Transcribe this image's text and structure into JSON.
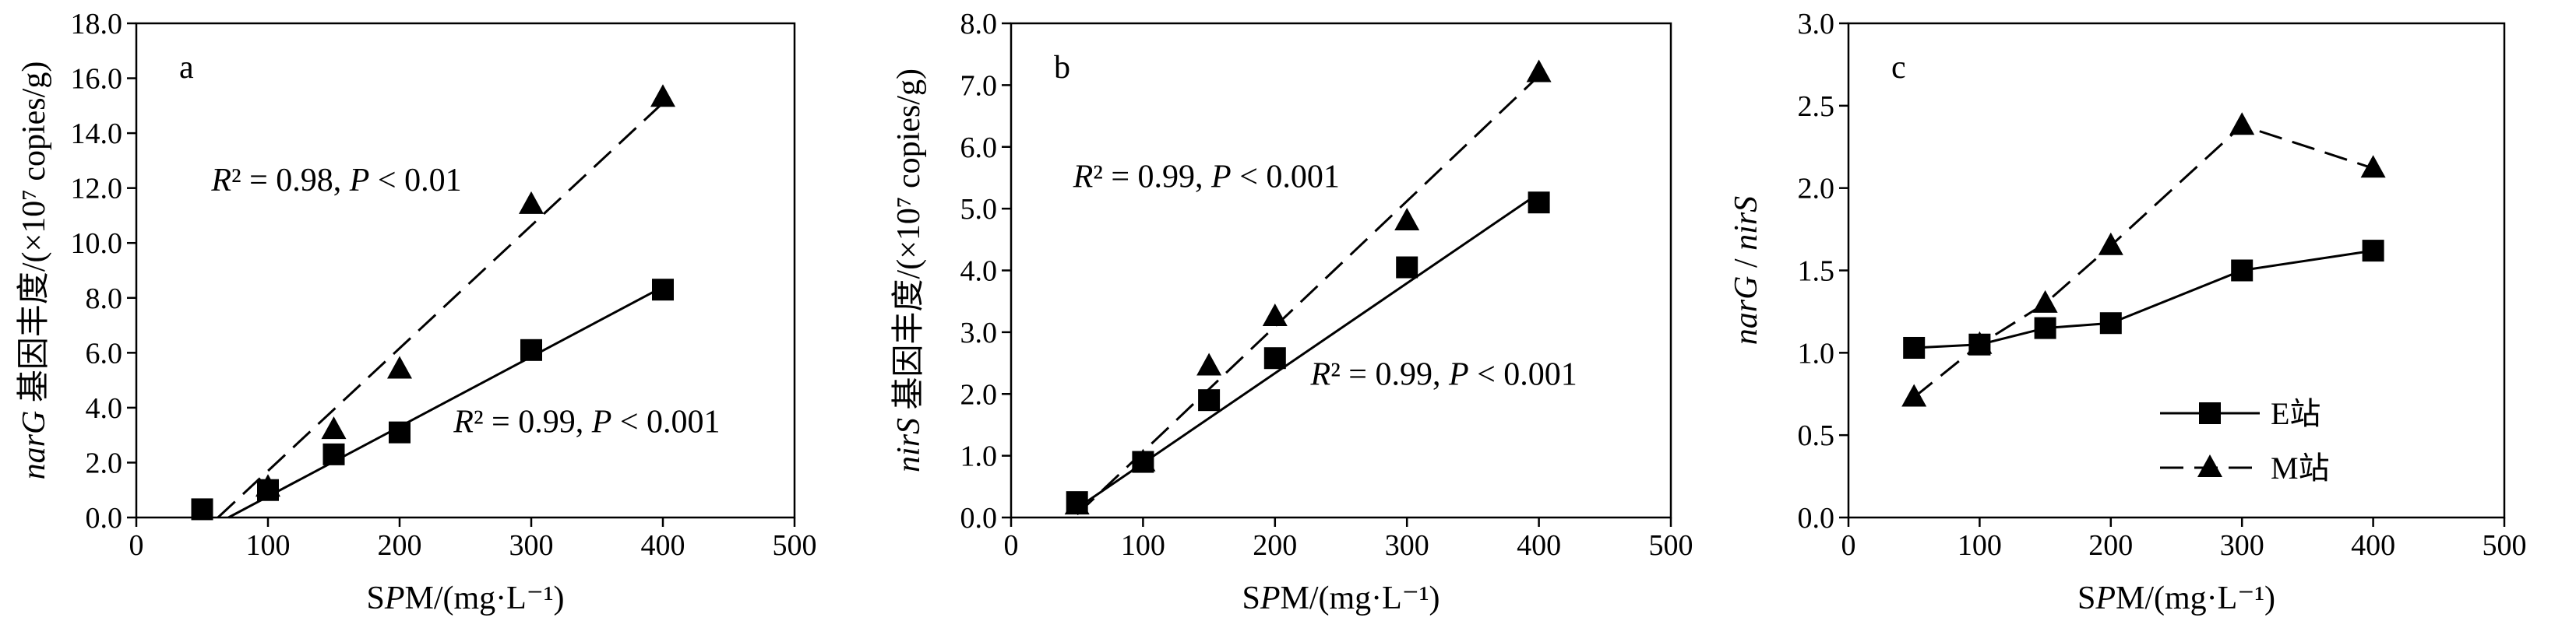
{
  "chart_data": [
    {
      "type": "scatter",
      "panel_label": "a",
      "xlabel": "SPM/(mg·L⁻¹)",
      "ylabel": "narG 基因丰度/(×10⁷ copies/g)",
      "xlim": [
        0,
        500
      ],
      "ylim": [
        0,
        18
      ],
      "x_ticks": [
        0,
        100,
        200,
        300,
        400,
        500
      ],
      "y_ticks": [
        0,
        2,
        4,
        6,
        8,
        10,
        12,
        14,
        16,
        18
      ],
      "x_tick_labels": [
        "0",
        "100",
        "200",
        "300",
        "400",
        "500"
      ],
      "y_tick_labels": [
        "0.0",
        "2.0",
        "4.0",
        "6.0",
        "8.0",
        "10.0",
        "12.0",
        "14.0",
        "16.0",
        "18.0"
      ],
      "grid": false,
      "series": [
        {
          "marker": "square",
          "line": "solid",
          "x": [
            50,
            100,
            150,
            200,
            300,
            400
          ],
          "y": [
            0.3,
            1.0,
            2.3,
            3.1,
            6.1,
            8.3
          ],
          "fit": [
            [
              70,
              0.0
            ],
            [
              400,
              8.4
            ]
          ]
        },
        {
          "marker": "triangle",
          "line": "dashed",
          "x": [
            100,
            150,
            200,
            300,
            400
          ],
          "y": [
            1.1,
            3.2,
            5.4,
            11.4,
            15.3
          ],
          "fit": [
            [
              62,
              0.0
            ],
            [
              400,
              15.1
            ]
          ]
        }
      ],
      "annotations": [
        {
          "text": "R² = 0.98, P < 0.01",
          "x": 57,
          "y": 11.9
        },
        {
          "text": "R² = 0.99, P < 0.001",
          "x": 241,
          "y": 3.1
        }
      ]
    },
    {
      "type": "scatter",
      "panel_label": "b",
      "xlabel": "SPM/(mg·L⁻¹)",
      "ylabel": "nirS 基因丰度/(×10⁷ copies/g)",
      "xlim": [
        0,
        500
      ],
      "ylim": [
        0,
        8
      ],
      "x_ticks": [
        0,
        100,
        200,
        300,
        400,
        500
      ],
      "y_ticks": [
        0,
        1,
        2,
        3,
        4,
        5,
        6,
        7,
        8
      ],
      "x_tick_labels": [
        "0",
        "100",
        "200",
        "300",
        "400",
        "500"
      ],
      "y_tick_labels": [
        "0.0",
        "1.0",
        "2.0",
        "3.0",
        "4.0",
        "5.0",
        "6.0",
        "7.0",
        "8.0"
      ],
      "grid": false,
      "series": [
        {
          "marker": "square",
          "line": "solid",
          "x": [
            50,
            100,
            150,
            200,
            300,
            400
          ],
          "y": [
            0.25,
            0.9,
            1.9,
            2.58,
            4.05,
            5.1
          ],
          "fit": [
            [
              50,
              0.15
            ],
            [
              400,
              5.25
            ]
          ]
        },
        {
          "marker": "triangle",
          "line": "dashed",
          "x": [
            50,
            100,
            150,
            200,
            300,
            400
          ],
          "y": [
            0.2,
            0.9,
            2.45,
            3.25,
            4.8,
            7.2
          ],
          "fit": [
            [
              50,
              0.05
            ],
            [
              400,
              7.15
            ]
          ]
        }
      ],
      "annotations": [
        {
          "text": "R² = 0.99, P < 0.001",
          "x": 47,
          "y": 5.35
        },
        {
          "text": "R² = 0.99, P < 0.001",
          "x": 227,
          "y": 2.15
        }
      ]
    },
    {
      "type": "line",
      "panel_label": "c",
      "xlabel": "SPM/(mg·L⁻¹)",
      "ylabel": "narG / nirS",
      "xlim": [
        0,
        500
      ],
      "ylim": [
        0,
        3
      ],
      "x_ticks": [
        0,
        100,
        200,
        300,
        400,
        500
      ],
      "y_ticks": [
        0,
        0.5,
        1,
        1.5,
        2,
        2.5,
        3
      ],
      "x_tick_labels": [
        "0",
        "100",
        "200",
        "300",
        "400",
        "500"
      ],
      "y_tick_labels": [
        "0.0",
        "0.5",
        "1.0",
        "1.5",
        "2.0",
        "2.5",
        "3.0"
      ],
      "grid": false,
      "legend": "bottom-right",
      "series": [
        {
          "name": "E站",
          "marker": "square",
          "line": "solid",
          "x": [
            50,
            100,
            150,
            200,
            300,
            400
          ],
          "y": [
            1.03,
            1.05,
            1.15,
            1.18,
            1.5,
            1.62
          ]
        },
        {
          "name": "M站",
          "marker": "triangle",
          "line": "dashed",
          "x": [
            50,
            100,
            150,
            200,
            300,
            400
          ],
          "y": [
            0.73,
            1.05,
            1.3,
            1.65,
            2.38,
            2.12
          ]
        }
      ]
    }
  ]
}
